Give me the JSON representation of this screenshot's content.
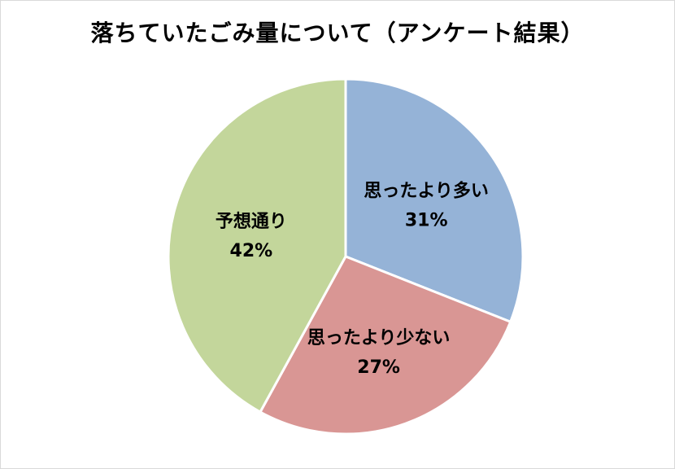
{
  "chart_data": {
    "type": "pie",
    "title": "落ちていたごみ量について（アンケート結果）",
    "categories": [
      "思ったより多い",
      "思ったより少ない",
      "予想通り"
    ],
    "values": [
      31,
      27,
      42
    ],
    "value_labels": [
      "31%",
      "27%",
      "42%"
    ],
    "colors": [
      "#95b3d7",
      "#d99694",
      "#c3d69b"
    ],
    "start_angle_deg": 0,
    "direction": "clockwise",
    "legend": "none"
  }
}
